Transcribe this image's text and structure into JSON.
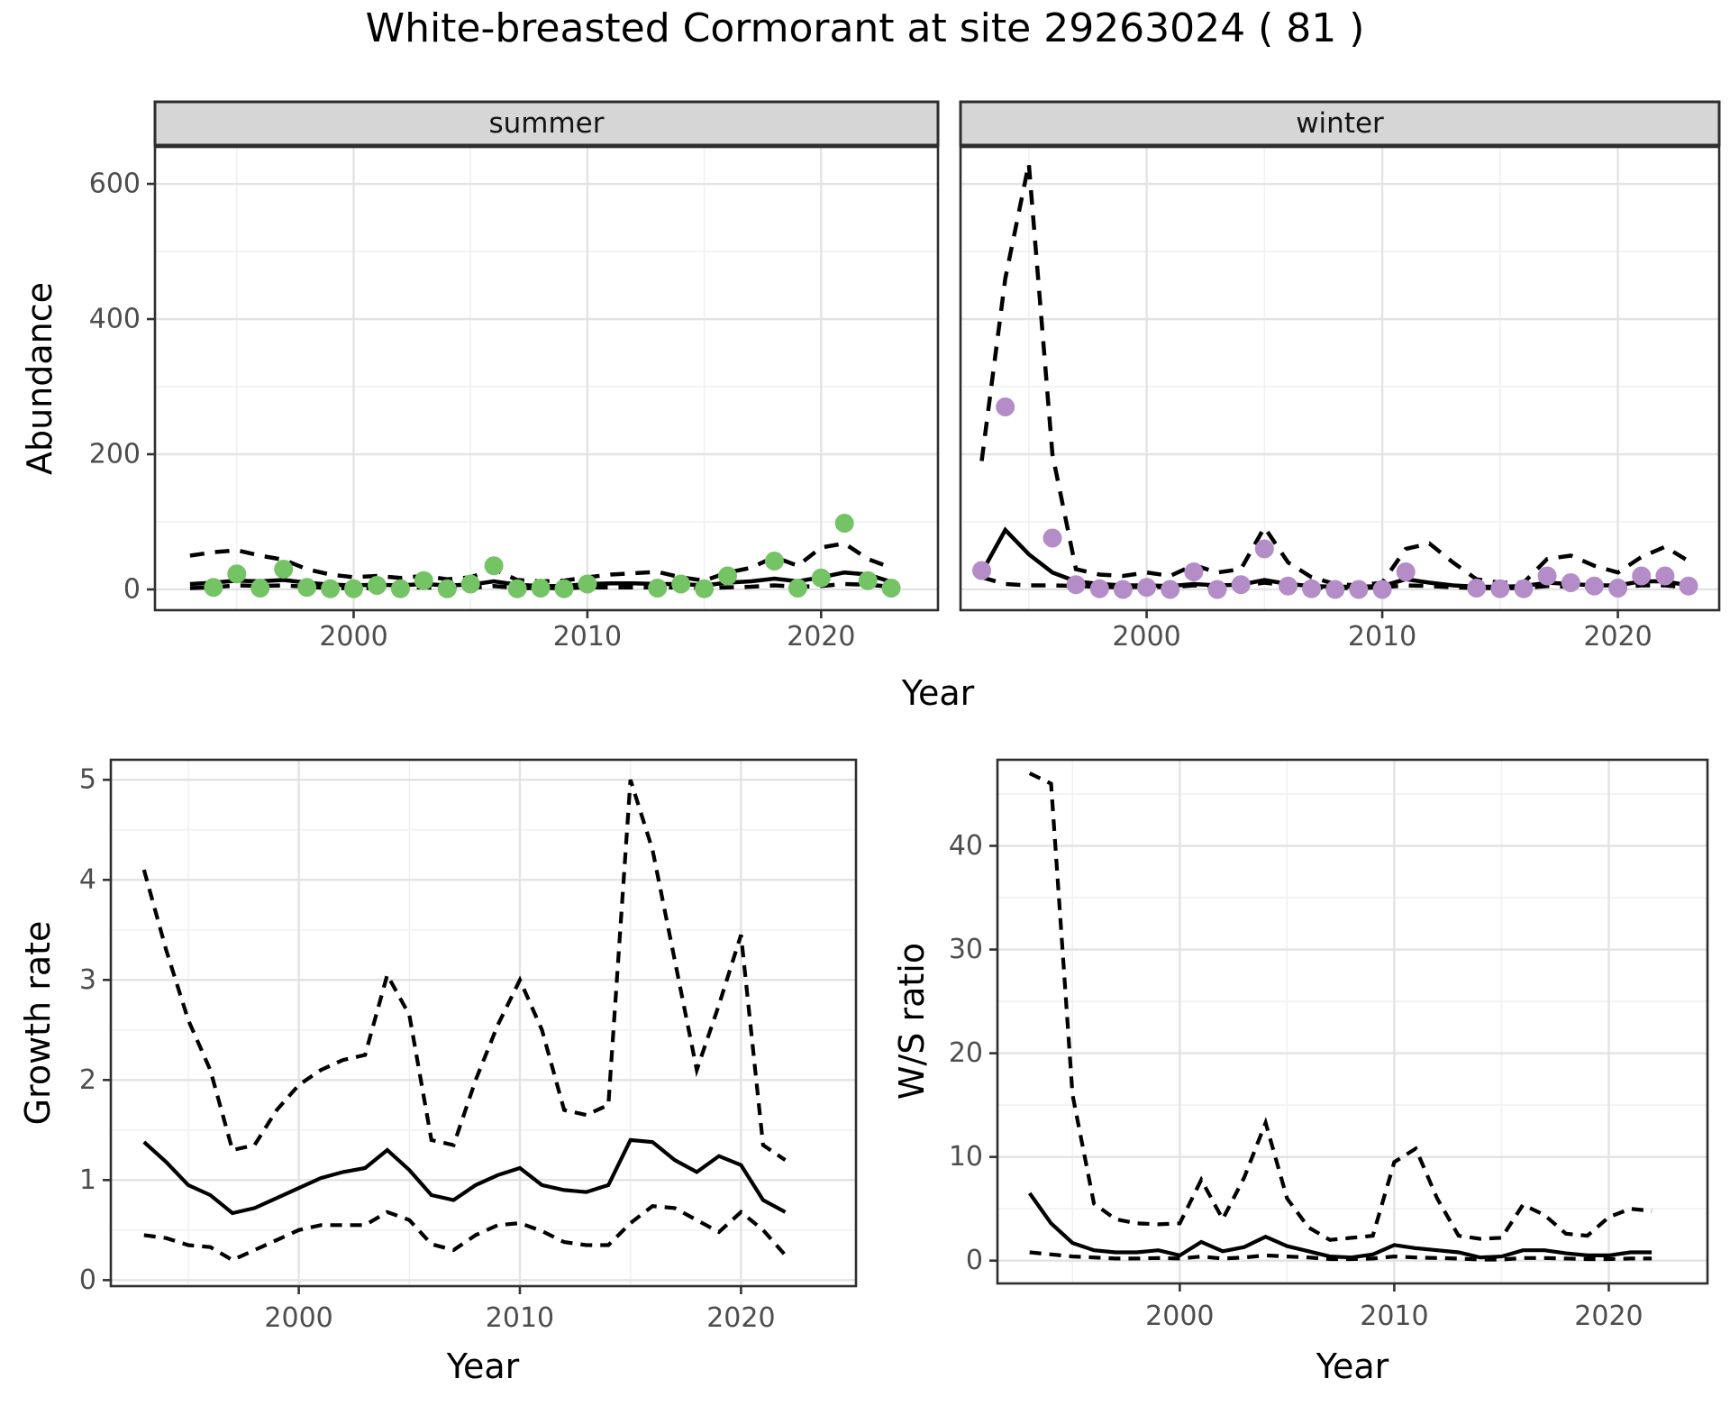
{
  "title": "White-breasted Cormorant at site 29263024 ( 81 )",
  "colors": {
    "summer_points": "#74c365",
    "winter_points": "#b48cc8",
    "line": "#000000",
    "strip_fill": "#d6d6d6",
    "panel_border": "#2e2e2e",
    "grid_major": "#e3e3e3",
    "grid_minor": "#f1f1f1",
    "tick_label": "#4d4d4d"
  },
  "chart_data": [
    {
      "id": "abundance-summer",
      "type": "scatter+line",
      "facet_label": "summer",
      "xlabel": "Year",
      "ylabel": "Abundance",
      "xlim": [
        1991.5,
        2025.0
      ],
      "ylim": [
        -30.7,
        654.7
      ],
      "x_ticks": [
        2000,
        2010,
        2020
      ],
      "x_minor": [
        1995,
        2005,
        2015
      ],
      "y_ticks": [
        0,
        200,
        400,
        600
      ],
      "y_minor": [
        100,
        300,
        500
      ],
      "grid": true,
      "legend": "none",
      "series": [
        {
          "name": "observed-counts",
          "kind": "points",
          "color": "#74c365",
          "x": [
            1994,
            1995,
            1996,
            1997,
            1998,
            1999,
            2000,
            2001,
            2002,
            2003,
            2004,
            2005,
            2006,
            2007,
            2008,
            2009,
            2010,
            2013,
            2014,
            2015,
            2016,
            2018,
            2019,
            2020,
            2021,
            2022,
            2023
          ],
          "y": [
            3,
            23,
            2,
            30,
            3,
            1,
            1,
            6,
            1,
            13,
            1,
            8,
            35,
            1,
            2,
            1,
            8,
            2,
            8,
            1,
            20,
            42,
            2,
            17,
            98,
            13,
            2
          ]
        },
        {
          "name": "model-median",
          "kind": "line",
          "line": "solid",
          "x": [
            1993,
            1994,
            1995,
            1996,
            1997,
            1998,
            1999,
            2000,
            2001,
            2002,
            2003,
            2004,
            2005,
            2006,
            2007,
            2008,
            2009,
            2010,
            2011,
            2012,
            2013,
            2014,
            2015,
            2016,
            2017,
            2018,
            2019,
            2020,
            2021,
            2022,
            2023
          ],
          "y": [
            8,
            10,
            13,
            12,
            14,
            10,
            7,
            6,
            7,
            6,
            8,
            6,
            7,
            12,
            7,
            5,
            5,
            8,
            9,
            9,
            8,
            8,
            6,
            10,
            12,
            16,
            12,
            18,
            25,
            22,
            11
          ]
        },
        {
          "name": "upper-credible",
          "kind": "line",
          "line": "dashed",
          "x": [
            1993,
            1994,
            1995,
            1996,
            1997,
            1998,
            1999,
            2000,
            2001,
            2002,
            2003,
            2004,
            2005,
            2006,
            2007,
            2008,
            2009,
            2010,
            2011,
            2012,
            2013,
            2014,
            2015,
            2016,
            2017,
            2018,
            2019,
            2020,
            2021,
            2022,
            2023
          ],
          "y": [
            50,
            55,
            58,
            50,
            44,
            30,
            22,
            18,
            20,
            17,
            20,
            15,
            18,
            30,
            14,
            12,
            13,
            18,
            22,
            24,
            26,
            18,
            13,
            25,
            32,
            48,
            35,
            62,
            68,
            45,
            32
          ]
        },
        {
          "name": "lower-credible",
          "kind": "line",
          "line": "dashed",
          "x": [
            1993,
            1994,
            1995,
            1996,
            1997,
            1998,
            1999,
            2000,
            2001,
            2002,
            2003,
            2004,
            2005,
            2006,
            2007,
            2008,
            2009,
            2010,
            2011,
            2012,
            2013,
            2014,
            2015,
            2016,
            2017,
            2018,
            2019,
            2020,
            2021,
            2022,
            2023
          ],
          "y": [
            2,
            3,
            6,
            5,
            6,
            4,
            2,
            2,
            2,
            2,
            3,
            2,
            2,
            5,
            2,
            2,
            2,
            3,
            3,
            3,
            3,
            3,
            2,
            3,
            4,
            6,
            4,
            5,
            8,
            7,
            4
          ]
        }
      ]
    },
    {
      "id": "abundance-winter",
      "type": "scatter+line",
      "facet_label": "winter",
      "xlabel": "Year",
      "ylabel": "Abundance",
      "xlim": [
        1992.1,
        2024.3
      ],
      "ylim": [
        -30.7,
        654.7
      ],
      "x_ticks": [
        2000,
        2010,
        2020
      ],
      "x_minor": [
        1995,
        2005,
        2015
      ],
      "y_ticks": [
        0,
        200,
        400,
        600
      ],
      "y_minor": [
        100,
        300,
        500
      ],
      "grid": true,
      "legend": "none",
      "series": [
        {
          "name": "observed-counts",
          "kind": "points",
          "color": "#b48cc8",
          "x": [
            1993,
            1994,
            1996,
            1997,
            1998,
            1999,
            2000,
            2001,
            2002,
            2003,
            2004,
            2005,
            2006,
            2007,
            2008,
            2009,
            2010,
            2011,
            2014,
            2015,
            2016,
            2017,
            2018,
            2019,
            2020,
            2021,
            2022,
            2023
          ],
          "y": [
            28,
            270,
            76,
            7,
            1,
            0,
            3,
            0,
            26,
            0,
            7,
            60,
            5,
            1,
            0,
            0,
            0,
            26,
            2,
            1,
            1,
            20,
            10,
            5,
            2,
            20,
            20,
            5
          ]
        },
        {
          "name": "model-median",
          "kind": "line",
          "line": "solid",
          "x": [
            1993,
            1994,
            1995,
            1996,
            1997,
            1998,
            1999,
            2000,
            2001,
            2002,
            2003,
            2004,
            2005,
            2006,
            2007,
            2008,
            2009,
            2010,
            2011,
            2012,
            2013,
            2014,
            2015,
            2016,
            2017,
            2018,
            2019,
            2020,
            2021,
            2022,
            2023
          ],
          "y": [
            25,
            88,
            52,
            25,
            12,
            8,
            6,
            6,
            5,
            8,
            6,
            7,
            14,
            8,
            5,
            4,
            4,
            5,
            15,
            10,
            6,
            4,
            4,
            5,
            10,
            8,
            6,
            6,
            12,
            12,
            6
          ]
        },
        {
          "name": "upper-credible",
          "kind": "line",
          "line": "dashed",
          "x": [
            1993,
            1994,
            1995,
            1996,
            1997,
            1998,
            1999,
            2000,
            2001,
            2002,
            2003,
            2004,
            2005,
            2006,
            2007,
            2008,
            2009,
            2010,
            2011,
            2012,
            2013,
            2014,
            2015,
            2016,
            2017,
            2018,
            2019,
            2020,
            2021,
            2022,
            2023
          ],
          "y": [
            190,
            460,
            630,
            200,
            30,
            22,
            20,
            25,
            20,
            36,
            25,
            30,
            92,
            40,
            18,
            8,
            6,
            10,
            60,
            68,
            40,
            15,
            10,
            10,
            45,
            50,
            35,
            25,
            48,
            63,
            42
          ]
        },
        {
          "name": "lower-credible",
          "kind": "line",
          "line": "dashed",
          "x": [
            1993,
            1994,
            1995,
            1996,
            1997,
            1998,
            1999,
            2000,
            2001,
            2002,
            2003,
            2004,
            2005,
            2006,
            2007,
            2008,
            2009,
            2010,
            2011,
            2012,
            2013,
            2014,
            2015,
            2016,
            2017,
            2018,
            2019,
            2020,
            2021,
            2022,
            2023
          ],
          "y": [
            18,
            8,
            6,
            6,
            5,
            4,
            3,
            4,
            3,
            6,
            4,
            5,
            10,
            6,
            3,
            2,
            2,
            3,
            6,
            5,
            3,
            2,
            2,
            2,
            5,
            4,
            3,
            3,
            6,
            6,
            3
          ]
        }
      ]
    },
    {
      "id": "growth-rate",
      "type": "line",
      "facet_label": "",
      "xlabel": "Year",
      "ylabel": "Growth rate",
      "xlim": [
        1991.5,
        2025.2
      ],
      "ylim": [
        -0.06,
        5.2
      ],
      "x_ticks": [
        2000,
        2010,
        2020
      ],
      "x_minor": [
        1995,
        2005,
        2015
      ],
      "y_ticks": [
        0,
        1,
        2,
        3,
        4,
        5
      ],
      "y_minor": [
        0.5,
        1.5,
        2.5,
        3.5,
        4.5
      ],
      "grid": true,
      "legend": "none",
      "series": [
        {
          "name": "median-growth",
          "kind": "line",
          "line": "solid",
          "x": [
            1993,
            1994,
            1995,
            1996,
            1997,
            1998,
            1999,
            2000,
            2001,
            2002,
            2003,
            2004,
            2005,
            2006,
            2007,
            2008,
            2009,
            2010,
            2011,
            2012,
            2013,
            2014,
            2015,
            2016,
            2017,
            2018,
            2019,
            2020,
            2021,
            2022
          ],
          "y": [
            1.38,
            1.18,
            0.95,
            0.85,
            0.67,
            0.72,
            0.82,
            0.92,
            1.02,
            1.08,
            1.12,
            1.3,
            1.1,
            0.85,
            0.8,
            0.95,
            1.05,
            1.12,
            0.95,
            0.9,
            0.88,
            0.95,
            1.4,
            1.38,
            1.2,
            1.08,
            1.24,
            1.15,
            0.8,
            0.68
          ]
        },
        {
          "name": "upper-credible",
          "kind": "line",
          "line": "dashed",
          "x": [
            1993,
            1994,
            1995,
            1996,
            1997,
            1998,
            1999,
            2000,
            2001,
            2002,
            2003,
            2004,
            2005,
            2006,
            2007,
            2008,
            2009,
            2010,
            2011,
            2012,
            2013,
            2014,
            2015,
            2016,
            2017,
            2018,
            2019,
            2020,
            2021,
            2022
          ],
          "y": [
            4.1,
            3.3,
            2.6,
            2.1,
            1.3,
            1.35,
            1.7,
            1.95,
            2.1,
            2.2,
            2.25,
            3.05,
            2.65,
            1.4,
            1.35,
            2.0,
            2.55,
            3.0,
            2.5,
            1.7,
            1.65,
            1.75,
            5.0,
            4.3,
            3.2,
            2.1,
            2.75,
            3.45,
            1.35,
            1.2
          ]
        },
        {
          "name": "lower-credible",
          "kind": "line",
          "line": "dashed",
          "x": [
            1993,
            1994,
            1995,
            1996,
            1997,
            1998,
            1999,
            2000,
            2001,
            2002,
            2003,
            2004,
            2005,
            2006,
            2007,
            2008,
            2009,
            2010,
            2011,
            2012,
            2013,
            2014,
            2015,
            2016,
            2017,
            2018,
            2019,
            2020,
            2021,
            2022
          ],
          "y": [
            0.45,
            0.42,
            0.35,
            0.33,
            0.2,
            0.3,
            0.4,
            0.5,
            0.55,
            0.55,
            0.55,
            0.68,
            0.6,
            0.36,
            0.3,
            0.45,
            0.55,
            0.57,
            0.49,
            0.38,
            0.35,
            0.35,
            0.57,
            0.74,
            0.72,
            0.6,
            0.48,
            0.68,
            0.5,
            0.25
          ]
        }
      ]
    },
    {
      "id": "ws-ratio",
      "type": "line",
      "facet_label": "",
      "xlabel": "Year",
      "ylabel": "W/S ratio",
      "xlim": [
        1991.5,
        2024.6
      ],
      "ylim": [
        -2.2,
        48.3
      ],
      "x_ticks": [
        2000,
        2010,
        2020
      ],
      "x_minor": [
        1995,
        2005,
        2015
      ],
      "y_ticks": [
        0,
        10,
        20,
        30,
        40
      ],
      "y_minor": [
        5,
        15,
        25,
        35,
        45
      ],
      "grid": true,
      "legend": "none",
      "series": [
        {
          "name": "median-ratio",
          "kind": "line",
          "line": "solid",
          "x": [
            1993,
            1994,
            1995,
            1996,
            1997,
            1998,
            1999,
            2000,
            2001,
            2002,
            2003,
            2004,
            2005,
            2006,
            2007,
            2008,
            2009,
            2010,
            2011,
            2012,
            2013,
            2014,
            2015,
            2016,
            2017,
            2018,
            2019,
            2020,
            2021,
            2022
          ],
          "y": [
            6.5,
            3.6,
            1.7,
            1.0,
            0.8,
            0.8,
            1.0,
            0.5,
            1.8,
            0.9,
            1.3,
            2.3,
            1.4,
            0.9,
            0.4,
            0.3,
            0.6,
            1.5,
            1.2,
            1.0,
            0.8,
            0.3,
            0.4,
            1.0,
            1.0,
            0.7,
            0.5,
            0.5,
            0.8,
            0.8
          ]
        },
        {
          "name": "upper-credible",
          "kind": "line",
          "line": "dashed",
          "x": [
            1993,
            1994,
            1995,
            1996,
            1997,
            1998,
            1999,
            2000,
            2001,
            2002,
            2003,
            2004,
            2005,
            2006,
            2007,
            2008,
            2009,
            2010,
            2011,
            2012,
            2013,
            2014,
            2015,
            2016,
            2017,
            2018,
            2019,
            2020,
            2021,
            2022
          ],
          "y": [
            47,
            46,
            16,
            5.5,
            4.0,
            3.6,
            3.5,
            3.6,
            7.8,
            4.0,
            8.0,
            13.3,
            6.0,
            3.2,
            2.0,
            2.2,
            2.4,
            9.5,
            10.8,
            6.0,
            2.4,
            2.1,
            2.2,
            5.4,
            4.4,
            2.6,
            2.4,
            4.2,
            5.0,
            4.8
          ]
        },
        {
          "name": "lower-credible",
          "kind": "line",
          "line": "dashed",
          "x": [
            1993,
            1994,
            1995,
            1996,
            1997,
            1998,
            1999,
            2000,
            2001,
            2002,
            2003,
            2004,
            2005,
            2006,
            2007,
            2008,
            2009,
            2010,
            2011,
            2012,
            2013,
            2014,
            2015,
            2016,
            2017,
            2018,
            2019,
            2020,
            2021,
            2022
          ],
          "y": [
            0.8,
            0.6,
            0.4,
            0.3,
            0.2,
            0.2,
            0.25,
            0.2,
            0.4,
            0.2,
            0.3,
            0.5,
            0.4,
            0.3,
            0.15,
            0.15,
            0.2,
            0.4,
            0.3,
            0.25,
            0.2,
            0.1,
            0.1,
            0.25,
            0.25,
            0.2,
            0.15,
            0.15,
            0.2,
            0.2
          ]
        }
      ]
    }
  ]
}
